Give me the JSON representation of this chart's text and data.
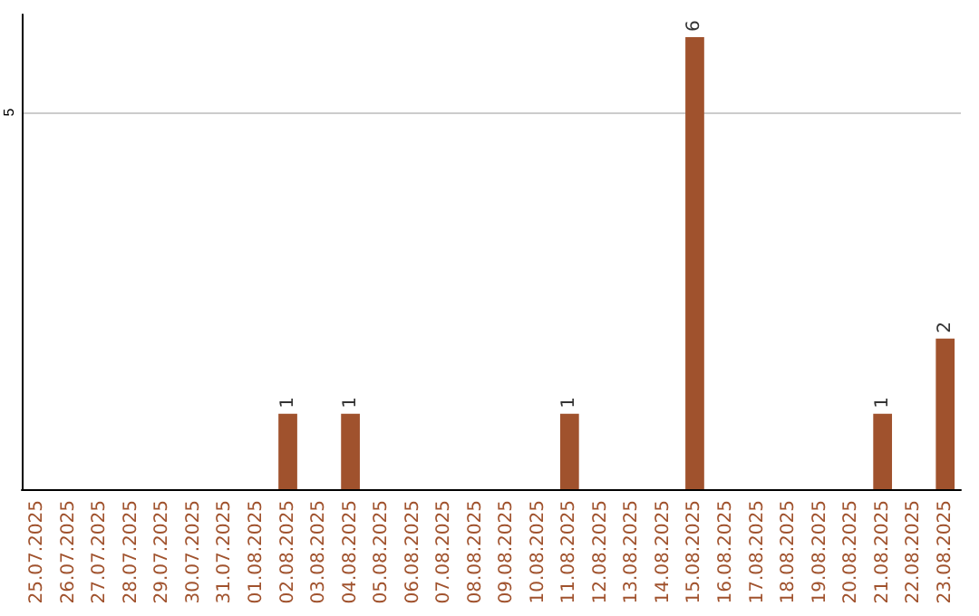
{
  "chart_data": {
    "type": "bar",
    "categories": [
      "25.07.2025",
      "26.07.2025",
      "27.07.2025",
      "28.07.2025",
      "29.07.2025",
      "30.07.2025",
      "31.07.2025",
      "01.08.2025",
      "02.08.2025",
      "03.08.2025",
      "04.08.2025",
      "05.08.2025",
      "06.08.2025",
      "07.08.2025",
      "08.08.2025",
      "09.08.2025",
      "10.08.2025",
      "11.08.2025",
      "12.08.2025",
      "13.08.2025",
      "14.08.2025",
      "15.08.2025",
      "16.08.2025",
      "17.08.2025",
      "18.08.2025",
      "19.08.2025",
      "20.08.2025",
      "21.08.2025",
      "22.08.2025",
      "23.08.2025"
    ],
    "values": [
      0,
      0,
      0,
      0,
      0,
      0,
      0,
      0,
      1,
      0,
      1,
      0,
      0,
      0,
      0,
      0,
      0,
      1,
      0,
      0,
      0,
      6,
      0,
      0,
      0,
      0,
      0,
      1,
      0,
      2
    ],
    "value_labels": [
      null,
      null,
      null,
      null,
      null,
      null,
      null,
      null,
      "1",
      null,
      "1",
      null,
      null,
      null,
      null,
      null,
      null,
      "1",
      null,
      null,
      null,
      "6",
      null,
      null,
      null,
      null,
      null,
      "1",
      null,
      "2"
    ],
    "color": "#a0522d",
    "ylim": [
      0,
      6.3
    ],
    "yticks": [
      5
    ],
    "grid": "y"
  }
}
